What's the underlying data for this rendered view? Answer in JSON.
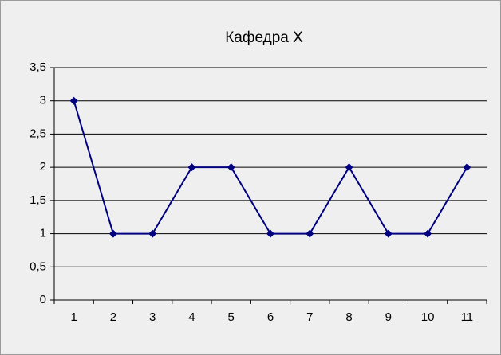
{
  "chart_data": {
    "type": "line",
    "title": "Кафедра X",
    "categories": [
      1,
      2,
      3,
      4,
      5,
      6,
      7,
      8,
      9,
      10,
      11
    ],
    "series": [
      {
        "name": "Кафедра X",
        "color": "#000080",
        "values": [
          3,
          1,
          1,
          2,
          2,
          1,
          1,
          2,
          1,
          1,
          2
        ]
      }
    ],
    "ylim": [
      0,
      3.5
    ],
    "yticks": [
      0,
      {
        "value": 0.5,
        "label": "0,5"
      },
      1,
      {
        "value": 1.5,
        "label": "1,5"
      },
      2,
      {
        "value": 2.5,
        "label": "2,5"
      },
      3,
      {
        "value": 3.5,
        "label": "3,5"
      }
    ],
    "grid": true,
    "legend": false
  }
}
